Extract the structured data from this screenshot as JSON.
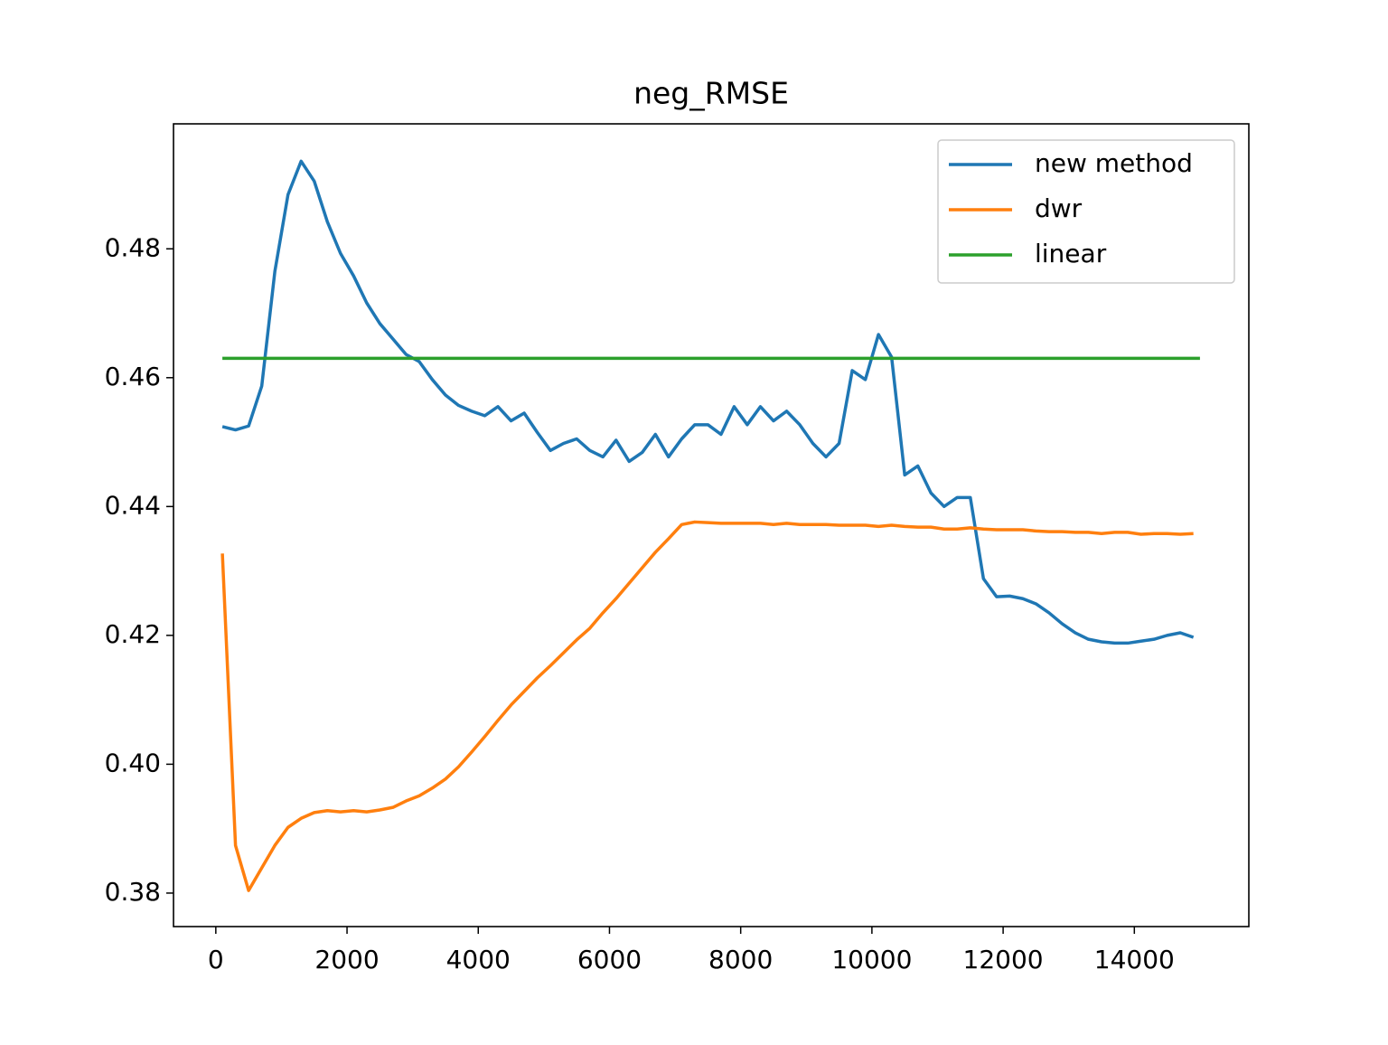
{
  "chart_data": {
    "type": "line",
    "title": "neg_RMSE",
    "x": [
      100,
      300,
      500,
      700,
      900,
      1100,
      1300,
      1500,
      1700,
      1900,
      2100,
      2300,
      2500,
      2700,
      2900,
      3100,
      3300,
      3500,
      3700,
      3900,
      4100,
      4300,
      4500,
      4700,
      4900,
      5100,
      5300,
      5500,
      5700,
      5900,
      6100,
      6300,
      6500,
      6700,
      6900,
      7100,
      7300,
      7500,
      7700,
      7900,
      8100,
      8300,
      8500,
      8700,
      8900,
      9100,
      9300,
      9500,
      9700,
      9900,
      10100,
      10300,
      10500,
      10700,
      10900,
      11100,
      11300,
      11500,
      11700,
      11900,
      12100,
      12300,
      12500,
      12700,
      12900,
      13100,
      13300,
      13500,
      13700,
      13900,
      14100,
      14300,
      14500,
      14700,
      14900
    ],
    "series": [
      {
        "name": "new method",
        "color": "#1f77b4",
        "values": [
          0.4524,
          0.4519,
          0.4525,
          0.4587,
          0.4765,
          0.4884,
          0.4936,
          0.4905,
          0.4842,
          0.4793,
          0.4758,
          0.4716,
          0.4684,
          0.466,
          0.4636,
          0.4625,
          0.4597,
          0.4573,
          0.4557,
          0.4548,
          0.4541,
          0.4555,
          0.4533,
          0.4545,
          0.4515,
          0.4487,
          0.4498,
          0.4505,
          0.4487,
          0.4477,
          0.4503,
          0.447,
          0.4484,
          0.4512,
          0.4477,
          0.4505,
          0.4527,
          0.4527,
          0.4512,
          0.4555,
          0.4527,
          0.4555,
          0.4533,
          0.4548,
          0.4527,
          0.4498,
          0.4477,
          0.4498,
          0.4611,
          0.4597,
          0.4667,
          0.4632,
          0.4449,
          0.4463,
          0.4421,
          0.44,
          0.4414,
          0.4414,
          0.4288,
          0.426,
          0.4261,
          0.4257,
          0.4249,
          0.4235,
          0.4218,
          0.4204,
          0.4194,
          0.419,
          0.4188,
          0.4188,
          0.4191,
          0.4194,
          0.42,
          0.4204,
          0.4197
        ]
      },
      {
        "name": "dwr",
        "color": "#ff7f0e",
        "values": [
          0.4327,
          0.3874,
          0.3804,
          0.3839,
          0.3874,
          0.3902,
          0.3916,
          0.3925,
          0.3928,
          0.3926,
          0.3928,
          0.3926,
          0.3929,
          0.3933,
          0.3943,
          0.3951,
          0.3963,
          0.3977,
          0.3996,
          0.4019,
          0.4043,
          0.4068,
          0.4092,
          0.4113,
          0.4134,
          0.4153,
          0.4173,
          0.4193,
          0.4211,
          0.4235,
          0.4257,
          0.4281,
          0.4305,
          0.4329,
          0.435,
          0.4372,
          0.4376,
          0.4375,
          0.4374,
          0.4374,
          0.4374,
          0.4374,
          0.4372,
          0.4374,
          0.4372,
          0.4372,
          0.4372,
          0.4371,
          0.4371,
          0.4371,
          0.4369,
          0.4371,
          0.4369,
          0.4368,
          0.4368,
          0.4365,
          0.4365,
          0.4367,
          0.4365,
          0.4364,
          0.4364,
          0.4364,
          0.4362,
          0.4361,
          0.4361,
          0.436,
          0.436,
          0.4358,
          0.436,
          0.436,
          0.4357,
          0.4358,
          0.4358,
          0.4357,
          0.4358
        ]
      },
      {
        "name": "linear",
        "color": "#2ca02c",
        "x": [
          100,
          15000
        ],
        "values": [
          0.463,
          0.463
        ]
      }
    ],
    "xlim": [
      -645,
      15745
    ],
    "xticks": [
      0,
      2000,
      4000,
      6000,
      8000,
      10000,
      12000,
      14000
    ],
    "ylim": [
      0.3748,
      0.4994
    ],
    "yticks": [
      {
        "value": 0.38,
        "label": "0.38"
      },
      {
        "value": 0.4,
        "label": "0.40"
      },
      {
        "value": 0.42,
        "label": "0.42"
      },
      {
        "value": 0.44,
        "label": "0.44"
      },
      {
        "value": 0.46,
        "label": "0.46"
      },
      {
        "value": 0.48,
        "label": "0.48"
      }
    ],
    "grid": false,
    "legend": "upper right"
  }
}
